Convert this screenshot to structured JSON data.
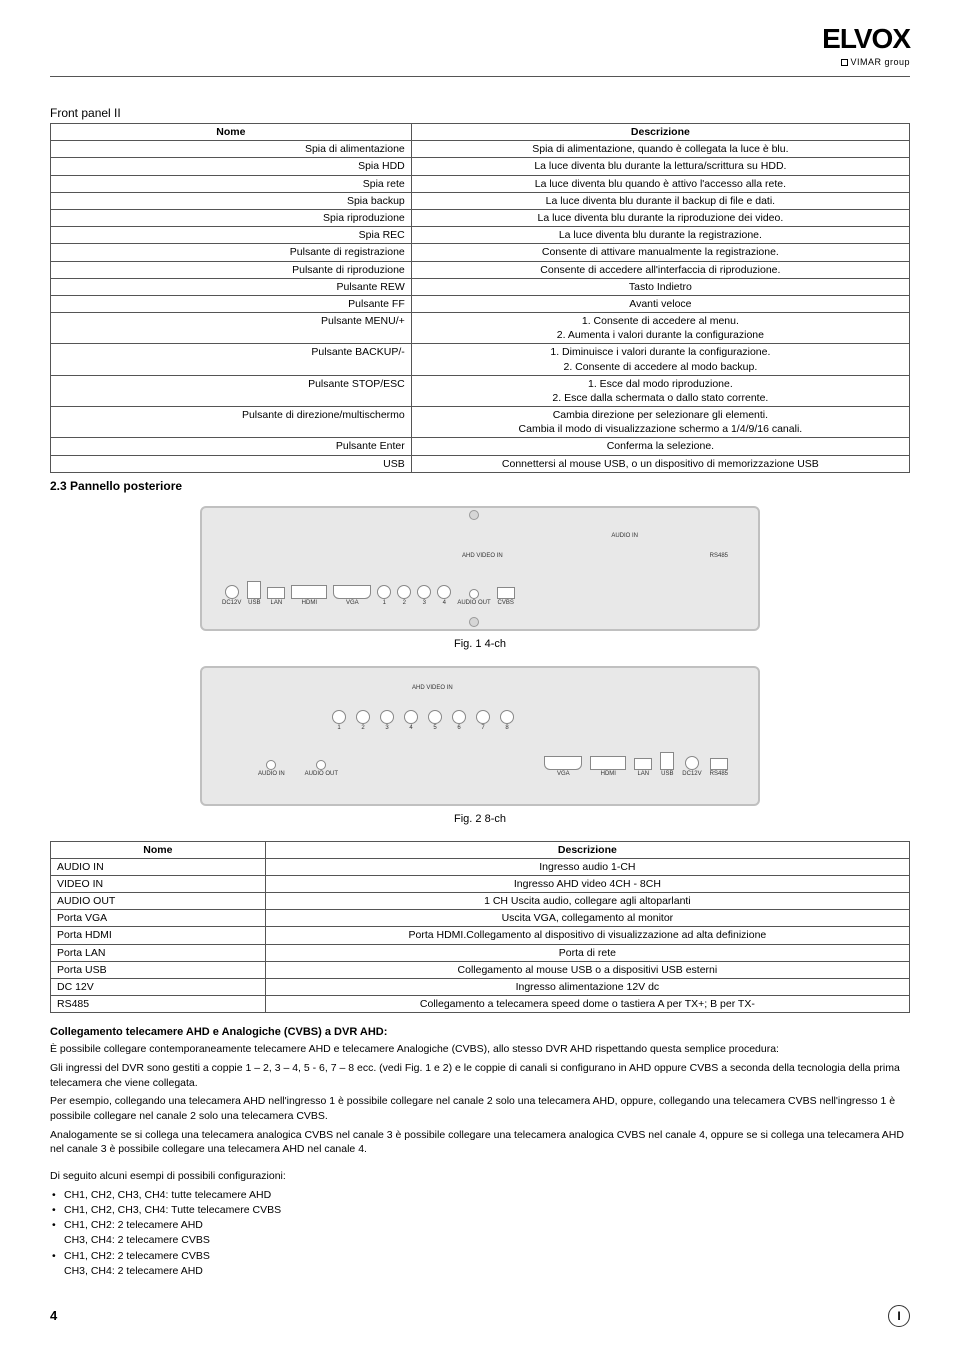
{
  "brand": {
    "logo": "ELVOX",
    "subline": "VIMAR group"
  },
  "front_panel": {
    "section_title": "Front panel II",
    "headers": {
      "name": "Nome",
      "desc": "Descrizione"
    },
    "rows": [
      {
        "name": "Spia di alimentazione",
        "desc": "Spia di alimentazione, quando è collegata la luce è blu."
      },
      {
        "name": "Spia HDD",
        "desc": "La luce diventa blu durante la lettura/scrittura su HDD."
      },
      {
        "name": "Spia rete",
        "desc": "La luce diventa blu quando è attivo l'accesso alla rete."
      },
      {
        "name": "Spia backup",
        "desc": "La luce diventa blu durante il backup di file e dati."
      },
      {
        "name": "Spia riproduzione",
        "desc": "La luce diventa blu durante la riproduzione dei video."
      },
      {
        "name": "Spia REC",
        "desc": "La luce diventa blu durante la registrazione."
      },
      {
        "name": "Pulsante di registrazione",
        "desc": "Consente di attivare manualmente la registrazione."
      },
      {
        "name": "Pulsante di riproduzione",
        "desc": "Consente di accedere all'interfaccia di riproduzione."
      },
      {
        "name": "Pulsante REW",
        "desc": "Tasto Indietro"
      },
      {
        "name": "Pulsante FF",
        "desc": "Avanti veloce"
      },
      {
        "name": "Pulsante MENU/+",
        "desc": "1. Consente di accedere al menu.\n2. Aumenta i valori durante la configurazione"
      },
      {
        "name": "Pulsante BACKUP/-",
        "desc": "1. Diminuisce i valori durante la configurazione.\n2. Consente di accedere al modo backup."
      },
      {
        "name": "Pulsante STOP/ESC",
        "desc": "1. Esce dal modo riproduzione.\n2. Esce dalla schermata o dallo stato corrente."
      },
      {
        "name": "Pulsante di direzione/multischermo",
        "desc": "Cambia direzione per selezionare gli elementi.\nCambia il modo di visualizzazione schermo a 1/4/9/16 canali."
      },
      {
        "name": "Pulsante Enter",
        "desc": "Conferma la selezione."
      },
      {
        "name": "USB",
        "desc": "Connettersi al mouse USB, o un dispositivo di memorizzazione USB"
      }
    ]
  },
  "rear_panel_title": "2.3  Pannello posteriore",
  "fig1": {
    "caption": "Fig. 1   4-ch",
    "top_label_audioin": "AUDIO IN",
    "top_label_ahd": "AHD VIDEO IN",
    "top_label_rs485": "RS485",
    "ports": [
      "DC12V",
      "USB",
      "LAN",
      "HDMI",
      "VGA",
      "1",
      "2",
      "3",
      "4",
      "AUDIO OUT",
      "CVBS"
    ]
  },
  "fig2": {
    "caption": "Fig. 2  8-ch",
    "top_label_ahd": "AHD VIDEO IN",
    "ports_top": [
      "1",
      "2",
      "3",
      "4",
      "5",
      "6",
      "7",
      "8"
    ],
    "ports_bottom_left": [
      "AUDIO IN",
      "AUDIO OUT"
    ],
    "ports_bottom_right": [
      "VGA",
      "HDMI",
      "LAN",
      "USB",
      "DC12V",
      "RS485"
    ]
  },
  "ports_table": {
    "headers": {
      "name": "Nome",
      "desc": "Descrizione"
    },
    "rows": [
      {
        "name": "AUDIO IN",
        "desc": "Ingresso audio 1-CH"
      },
      {
        "name": "VIDEO IN",
        "desc": "Ingresso AHD video 4CH - 8CH"
      },
      {
        "name": "AUDIO OUT",
        "desc": "1 CH Uscita audio, collegare agli altoparlanti"
      },
      {
        "name": "Porta VGA",
        "desc": "Uscita VGA, collegamento al monitor"
      },
      {
        "name": "Porta HDMI",
        "desc": "Porta HDMI.Collegamento al dispositivo di visualizzazione ad alta definizione"
      },
      {
        "name": "Porta LAN",
        "desc": "Porta di rete"
      },
      {
        "name": "Porta USB",
        "desc": "Collegamento al mouse USB o a dispositivi USB esterni"
      },
      {
        "name": "DC 12V",
        "desc": "Ingresso alimentazione 12V dc"
      },
      {
        "name": "RS485",
        "desc": "Collegamento a telecamera speed dome o tastiera A per TX+; B per TX-"
      }
    ]
  },
  "connection": {
    "title": "Collegamento telecamere AHD e Analogiche (CVBS) a DVR AHD:",
    "p1": "È possibile collegare contemporaneamente telecamere AHD e telecamere Analogiche (CVBS), allo stesso DVR AHD rispettando questa semplice procedura:",
    "p2": "Gli ingressi del DVR sono gestiti a coppie 1 – 2, 3 – 4, 5 - 6, 7 – 8 ecc. (vedi Fig. 1 e 2) e le coppie di canali si configurano in AHD oppure CVBS a seconda della tecnologia della prima telecamera che viene collegata.",
    "p3": "Per esempio, collegando una telecamera AHD nell'ingresso 1 è possibile collegare nel canale 2 solo una telecamera AHD, oppure, collegando una telecamera CVBS nell'ingresso 1 è possibile collegare nel canale 2 solo una telecamera CVBS.",
    "p4": "Analogamente se si collega una telecamera analogica CVBS nel canale 3 è possibile collegare una telecamera analogica CVBS nel canale 4, oppure se si collega una telecamera AHD nel canale 3 è possibile collegare una telecamera AHD nel canale 4.",
    "list_intro": "Di seguito alcuni esempi di possibili configurazioni:",
    "items": [
      "CH1, CH2, CH3, CH4: tutte telecamere AHD",
      "CH1, CH2, CH3, CH4: Tutte telecamere CVBS",
      "CH1, CH2: 2 telecamere AHD",
      "CH3, CH4: 2 telecamere CVBS",
      "CH1, CH2: 2 telecamere CVBS",
      "CH3, CH4: 2 telecamere AHD"
    ]
  },
  "footer": {
    "page": "4",
    "lang": "I"
  },
  "style": {
    "page_bg": "#ffffff",
    "text_color": "#000000",
    "border_color": "#555555",
    "panel_bg": "#e8e8e8",
    "panel_border": "#c0c0c0",
    "body_font_size_pt": 11,
    "table_font_size_pt": 10.5
  }
}
